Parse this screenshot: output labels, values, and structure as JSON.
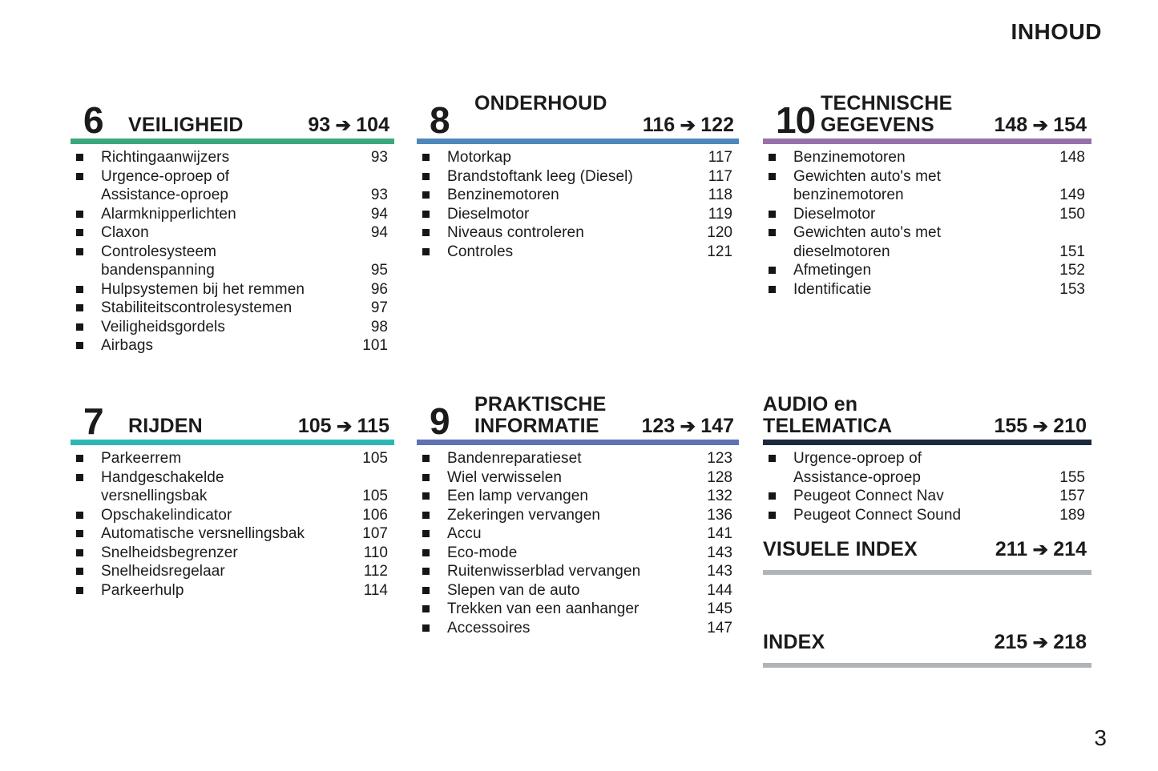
{
  "page": {
    "title": "INHOUD",
    "number": "3",
    "arrow": "➔"
  },
  "colors": {
    "green": "#3aa87c",
    "blue": "#4e88bb",
    "purple": "#9672a9",
    "teal": "#2db7b4",
    "periwinkle": "#5f72b5",
    "navy": "#1d2a3d",
    "gray": "#b1b4b6",
    "text": "#1b1b1b"
  },
  "sections": [
    {
      "key": "veiligheid",
      "slot": "c0r0",
      "header_row": "r0",
      "layout": "inline",
      "number": "6",
      "title_lines": [
        "VEILIGHEID"
      ],
      "range_from": "93",
      "range_to": "104",
      "accent": "#3aa87c",
      "items": [
        {
          "lines": [
            "Richtingaanwijzers"
          ],
          "page": "93"
        },
        {
          "lines": [
            "Urgence-oproep of",
            "Assistance-oproep"
          ],
          "page": "93"
        },
        {
          "lines": [
            "Alarmknipperlichten"
          ],
          "page": "94"
        },
        {
          "lines": [
            "Claxon"
          ],
          "page": "94"
        },
        {
          "lines": [
            "Controlesysteem",
            "bandenspanning"
          ],
          "page": "95"
        },
        {
          "lines": [
            "Hulpsystemen bij het remmen"
          ],
          "page": "96"
        },
        {
          "lines": [
            "Stabiliteitscontrolesystemen"
          ],
          "page": "97"
        },
        {
          "lines": [
            "Veiligheidsgordels"
          ],
          "page": "98"
        },
        {
          "lines": [
            "Airbags"
          ],
          "page": "101"
        }
      ]
    },
    {
      "key": "onderhoud",
      "slot": "c1r0",
      "header_row": "r0",
      "layout": "stacked",
      "number": "8",
      "title_lines": [
        "ONDERHOUD"
      ],
      "range_from": "116",
      "range_to": "122",
      "accent": "#4e88bb",
      "items": [
        {
          "lines": [
            "Motorkap"
          ],
          "page": "117"
        },
        {
          "lines": [
            "Brandstoftank leeg (Diesel)"
          ],
          "page": "117"
        },
        {
          "lines": [
            "Benzinemotoren"
          ],
          "page": "118"
        },
        {
          "lines": [
            "Dieselmotor"
          ],
          "page": "119"
        },
        {
          "lines": [
            "Niveaus controleren"
          ],
          "page": "120"
        },
        {
          "lines": [
            "Controles"
          ],
          "page": "121"
        }
      ]
    },
    {
      "key": "technische-gegevens",
      "slot": "c2r0",
      "header_row": "r0",
      "layout": "inline",
      "number": "10",
      "title_lines": [
        "TECHNISCHE",
        "GEGEVENS"
      ],
      "range_from": "148",
      "range_to": "154",
      "accent": "#9672a9",
      "items": [
        {
          "lines": [
            "Benzinemotoren"
          ],
          "page": "148"
        },
        {
          "lines": [
            "Gewichten auto's met",
            "benzinemotoren"
          ],
          "page": "149"
        },
        {
          "lines": [
            "Dieselmotor"
          ],
          "page": "150"
        },
        {
          "lines": [
            "Gewichten auto's met",
            "dieselmotoren"
          ],
          "page": "151"
        },
        {
          "lines": [
            "Afmetingen"
          ],
          "page": "152"
        },
        {
          "lines": [
            "Identificatie"
          ],
          "page": "153"
        }
      ]
    },
    {
      "key": "rijden",
      "slot": "c0r1",
      "header_row": "r1",
      "layout": "inline",
      "number": "7",
      "title_lines": [
        "RIJDEN"
      ],
      "range_from": "105",
      "range_to": "115",
      "accent": "#2db7b4",
      "items": [
        {
          "lines": [
            "Parkeerrem"
          ],
          "page": "105"
        },
        {
          "lines": [
            "Handgeschakelde",
            "versnellingsbak"
          ],
          "page": "105"
        },
        {
          "lines": [
            "Opschakelindicator"
          ],
          "page": "106"
        },
        {
          "lines": [
            "Automatische versnellingsbak"
          ],
          "page": "107"
        },
        {
          "lines": [
            "Snelheidsbegrenzer"
          ],
          "page": "110"
        },
        {
          "lines": [
            "Snelheidsregelaar"
          ],
          "page": "112"
        },
        {
          "lines": [
            "Parkeerhulp"
          ],
          "page": "114"
        }
      ]
    },
    {
      "key": "praktische-informatie",
      "slot": "c1r1",
      "header_row": "r1",
      "layout": "inline",
      "number": "9",
      "title_lines": [
        "PRAKTISCHE",
        "INFORMATIE"
      ],
      "range_from": "123",
      "range_to": "147",
      "accent": "#5f72b5",
      "items": [
        {
          "lines": [
            "Bandenreparatieset"
          ],
          "page": "123"
        },
        {
          "lines": [
            "Wiel verwisselen"
          ],
          "page": "128"
        },
        {
          "lines": [
            "Een lamp vervangen"
          ],
          "page": "132"
        },
        {
          "lines": [
            "Zekeringen vervangen"
          ],
          "page": "136"
        },
        {
          "lines": [
            "Accu"
          ],
          "page": "141"
        },
        {
          "lines": [
            "Eco-mode"
          ],
          "page": "143"
        },
        {
          "lines": [
            "Ruitenwisserblad vervangen"
          ],
          "page": "143"
        },
        {
          "lines": [
            "Slepen van de auto"
          ],
          "page": "144"
        },
        {
          "lines": [
            "Trekken van een aanhanger"
          ],
          "page": "145"
        },
        {
          "lines": [
            "Accessoires"
          ],
          "page": "147"
        }
      ]
    },
    {
      "key": "audio-en-telematica",
      "slot": "c2r1",
      "header_row": "r1",
      "layout": "inline",
      "number": "",
      "title_lines": [
        "AUDIO en",
        "TELEMATICA"
      ],
      "range_from": "155",
      "range_to": "210",
      "accent": "#1d2a3d",
      "items": [
        {
          "lines": [
            "Urgence-oproep of",
            "Assistance-oproep"
          ],
          "page": "155"
        },
        {
          "lines": [
            "Peugeot Connect Nav"
          ],
          "page": "157"
        },
        {
          "lines": [
            "Peugeot Connect Sound"
          ],
          "page": "189"
        }
      ]
    },
    {
      "key": "visuele-index",
      "slot": "visuele",
      "header_row": "compact",
      "layout": "inline",
      "number": "",
      "title_lines": [
        "VISUELE INDEX"
      ],
      "range_from": "211",
      "range_to": "214",
      "accent": "#b1b4b6",
      "rule_gap": true,
      "items": []
    },
    {
      "key": "index",
      "slot": "idx",
      "header_row": "compact",
      "layout": "inline",
      "number": "",
      "title_lines": [
        "INDEX"
      ],
      "range_from": "215",
      "range_to": "218",
      "accent": "#b1b4b6",
      "rule_gap": true,
      "items": []
    }
  ]
}
